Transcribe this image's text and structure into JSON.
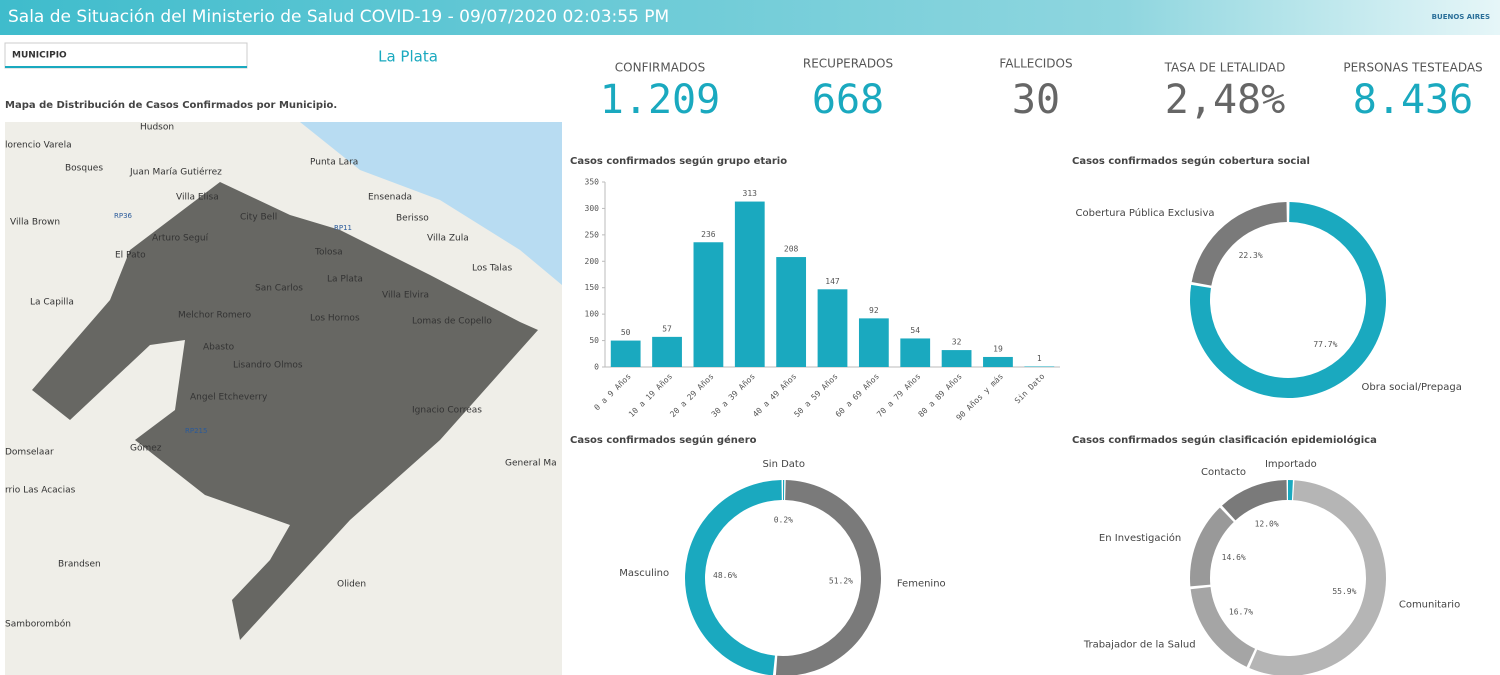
{
  "header": {
    "title": "Sala de Situación del Ministerio de Salud COVID-19 - 09/07/2020 02:03:55 PM",
    "logo": "BUENOS AIRES"
  },
  "filter": {
    "label": "MUNICIPIO",
    "selection": "La Plata"
  },
  "kpis": [
    {
      "label": "CONFIRMADOS",
      "value": "1.209"
    },
    {
      "label": "RECUPERADOS",
      "value": "668"
    },
    {
      "label": "FALLECIDOS",
      "value": "30"
    },
    {
      "label": "TASA DE LETALIDAD",
      "value": "2,48%"
    },
    {
      "label": "PERSONAS TESTEADAS",
      "value": "8.436"
    }
  ],
  "map": {
    "title": "Mapa de Distribución de Casos Confirmados por Municipio.",
    "places": [
      "Hudson",
      "lorencio Varela",
      "Bosques",
      "Juan María Gutiérrez",
      "Punta Lara",
      "Villa Elisa",
      "Ensenada",
      "City Bell",
      "Villa Brown",
      "Berisso",
      "Arturo Seguí",
      "Villa Zula",
      "Tolosa",
      "El Pato",
      "Los Talas",
      "La Plata",
      "San Carlos",
      "Villa Elvira",
      "La Capilla",
      "Melchor Romero",
      "Los Hornos",
      "Lomas de Copello",
      "Abasto",
      "Lisandro Olmos",
      "Angel Etcheverry",
      "Ignacio Correas",
      "Domselaar",
      "Gómez",
      "General Ma",
      "rrio Las Acacias",
      "Brandsen",
      "Oliden",
      "Samborombón",
      "RP36",
      "RP11",
      "RP215"
    ]
  },
  "chart_data": [
    {
      "type": "bar",
      "title": "Casos confirmados según grupo etario",
      "categories": [
        "0 a 9 Años",
        "10 a 19 Años",
        "20 a 29 Años",
        "30 a 39 Años",
        "40 a 49 Años",
        "50 a 59 Años",
        "60 a 69 Años",
        "70 a 79 Años",
        "80 a 89 Años",
        "90 Años y más",
        "Sin Dato"
      ],
      "values": [
        50,
        57,
        236,
        313,
        208,
        147,
        92,
        54,
        32,
        19,
        1
      ],
      "color": "#1aa9bf",
      "ylim": [
        0,
        350
      ],
      "yticks": [
        0,
        50,
        100,
        150,
        200,
        250,
        300,
        350
      ]
    },
    {
      "type": "donut",
      "title": "Casos confirmados según cobertura social",
      "categories": [
        "Obra social/Prepaga",
        "Cobertura Pública Exclusiva"
      ],
      "values": [
        77.7,
        22.3
      ],
      "value_labels": [
        "77.7%",
        "22.3%"
      ],
      "colors": [
        "#1aa9bf",
        "#7a7a7a"
      ]
    },
    {
      "type": "donut",
      "title": "Casos confirmados según género",
      "categories": [
        "Sin Dato",
        "Femenino",
        "Masculino"
      ],
      "values": [
        0.2,
        51.2,
        48.6
      ],
      "value_labels": [
        "0.2%",
        "51.2%",
        "48.6%"
      ],
      "colors": [
        "#1aa9bf",
        "#7a7a7a",
        "#1aa9bf"
      ]
    },
    {
      "type": "donut",
      "title": "Casos confirmados según clasificación epidemiológica",
      "categories": [
        "Importado",
        "Comunitario",
        "Trabajador de la Salud",
        "En Investigación",
        "Contacto"
      ],
      "values": [
        0.8,
        55.9,
        16.7,
        14.6,
        12.0
      ],
      "value_labels": [
        null,
        "55.9%",
        "16.7%",
        "14.6%",
        "12.0%"
      ],
      "colors": [
        "#1aa9bf",
        "#b5b5b5",
        "#a5a5a5",
        "#999999",
        "#7a7a7a"
      ]
    }
  ]
}
